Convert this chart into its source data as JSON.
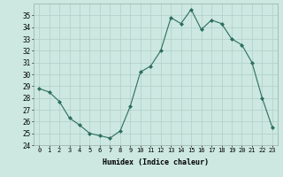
{
  "x": [
    0,
    1,
    2,
    3,
    4,
    5,
    6,
    7,
    8,
    9,
    10,
    11,
    12,
    13,
    14,
    15,
    16,
    17,
    18,
    19,
    20,
    21,
    22,
    23
  ],
  "y": [
    28.8,
    28.5,
    27.7,
    26.3,
    25.7,
    25.0,
    24.8,
    24.6,
    25.2,
    27.3,
    30.2,
    30.7,
    32.0,
    34.8,
    34.3,
    35.5,
    33.8,
    34.6,
    34.3,
    33.0,
    32.5,
    31.0,
    28.0,
    25.5
  ],
  "xlabel": "Humidex (Indice chaleur)",
  "ylim": [
    24,
    36
  ],
  "xlim": [
    -0.5,
    23.5
  ],
  "yticks": [
    24,
    25,
    26,
    27,
    28,
    29,
    30,
    31,
    32,
    33,
    34,
    35
  ],
  "xticks": [
    0,
    1,
    2,
    3,
    4,
    5,
    6,
    7,
    8,
    9,
    10,
    11,
    12,
    13,
    14,
    15,
    16,
    17,
    18,
    19,
    20,
    21,
    22,
    23
  ],
  "xtick_labels": [
    "0",
    "1",
    "2",
    "3",
    "4",
    "5",
    "6",
    "7",
    "8",
    "9",
    "10",
    "11",
    "12",
    "13",
    "14",
    "15",
    "16",
    "17",
    "18",
    "19",
    "20",
    "21",
    "22",
    "23"
  ],
  "line_color": "#2d6e5e",
  "marker_color": "#2d6e5e",
  "bg_color": "#cce8e0",
  "grid_color": "#b0cfc8",
  "spine_color": "#a0b8b0"
}
